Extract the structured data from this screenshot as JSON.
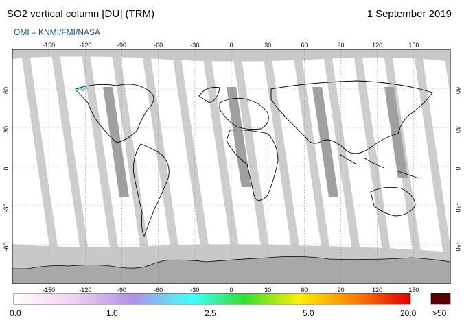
{
  "header": {
    "title": "SO2 vertical column [DU] (TRM)",
    "date": "1 September 2019",
    "credit": "OMI  –  KNMI/FMI/NASA"
  },
  "map": {
    "lon_ticks": [
      -150,
      -120,
      -90,
      -60,
      -30,
      0,
      30,
      60,
      90,
      120,
      150
    ],
    "lat_ticks": [
      60,
      30,
      0,
      -30,
      -60
    ],
    "lon_range": [
      -180,
      180
    ],
    "lat_range": [
      -90,
      90
    ],
    "colors": {
      "no_data": "#c8c8c8",
      "overlap": "#a0a0a0",
      "clean": "#ffffff",
      "coast": "#000000"
    }
  },
  "colorbar": {
    "labels": [
      "0.0",
      "1.0",
      "2.5",
      "5.0",
      "20.0"
    ],
    "overflow_label": ">50",
    "overflow_color": "#5a0000",
    "stops": [
      "#ffffff",
      "#f3d0f3",
      "#b090e6",
      "#40ffff",
      "#30e030",
      "#fff000",
      "#ff8000",
      "#e00000"
    ]
  }
}
